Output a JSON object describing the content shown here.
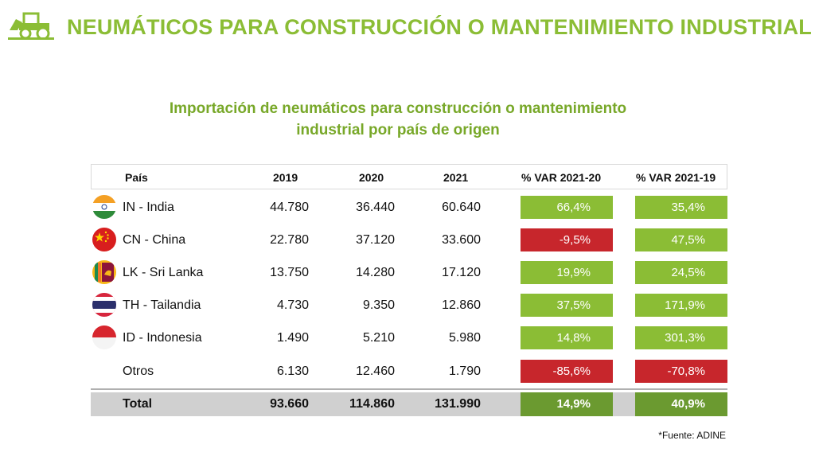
{
  "header": {
    "title": "NEUMÁTICOS PARA CONSTRUCCIÓN O MANTENIMIENTO INDUSTRIAL",
    "icon": "tractor-icon",
    "accent_color": "#8bbd35"
  },
  "subtitle": {
    "line1": "Importación de neumáticos para construcción o mantenimiento",
    "line2": "industrial por país de origen"
  },
  "table": {
    "columns": [
      "País",
      "2019",
      "2020",
      "2021",
      "% VAR 2021-20",
      "% VAR 2021-19"
    ],
    "rows": [
      {
        "country": "IN - India",
        "flag": "india-flag-icon",
        "y2019": "44.780",
        "y2020": "36.440",
        "y2021": "60.640",
        "var2120": "66,4%",
        "var2119": "35,4%"
      },
      {
        "country": "CN - China",
        "flag": "china-flag-icon",
        "y2019": "22.780",
        "y2020": "37.120",
        "y2021": "33.600",
        "var2120": "-9,5%",
        "var2119": "47,5%"
      },
      {
        "country": "LK - Sri Lanka",
        "flag": "sri-lanka-flag-icon",
        "y2019": "13.750",
        "y2020": "14.280",
        "y2021": "17.120",
        "var2120": "19,9%",
        "var2119": "24,5%"
      },
      {
        "country": "TH - Tailandia",
        "flag": "thailand-flag-icon",
        "y2019": "4.730",
        "y2020": "9.350",
        "y2021": "12.860",
        "var2120": "37,5%",
        "var2119": "171,9%"
      },
      {
        "country": "ID - Indonesia",
        "flag": "indonesia-flag-icon",
        "y2019": "1.490",
        "y2020": "5.210",
        "y2021": "5.980",
        "var2120": "14,8%",
        "var2119": "301,3%"
      },
      {
        "country": "Otros",
        "flag": "",
        "y2019": "6.130",
        "y2020": "12.460",
        "y2021": "1.790",
        "var2120": "-85,6%",
        "var2119": "-70,8%"
      }
    ],
    "total": {
      "country": "Total",
      "y2019": "93.660",
      "y2020": "114.860",
      "y2021": "131.990",
      "var2120": "14,9%",
      "var2119": "40,9%"
    },
    "colors": {
      "positive": "#8bbd35",
      "negative": "#c7262c",
      "total": "#6b9a30"
    }
  },
  "source": "*Fuente: ADINE"
}
